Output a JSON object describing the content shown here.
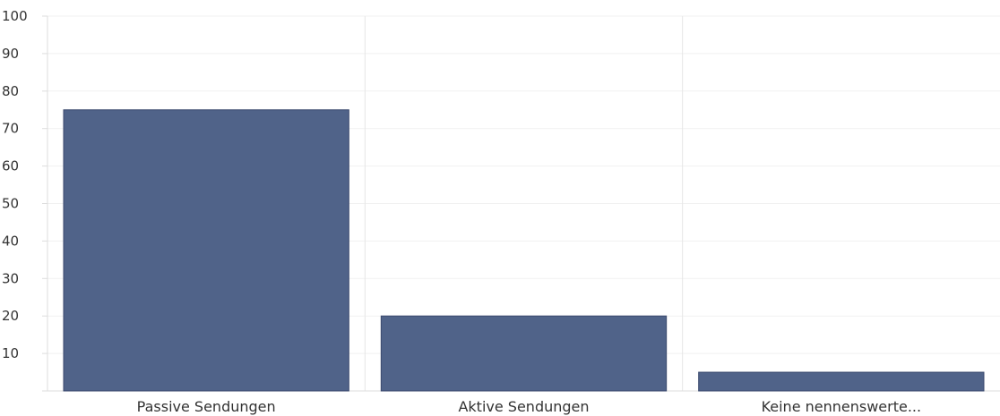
{
  "chart_data": {
    "type": "bar",
    "categories": [
      "Passive Sendungen",
      "Aktive Sendungen",
      "Keine nennenswerte..."
    ],
    "values": [
      75,
      20,
      5
    ],
    "ylim": [
      0,
      100
    ],
    "yticks": [
      10,
      20,
      30,
      40,
      50,
      60,
      70,
      80,
      90,
      100
    ],
    "grid": true,
    "bar_color": "#506389"
  }
}
